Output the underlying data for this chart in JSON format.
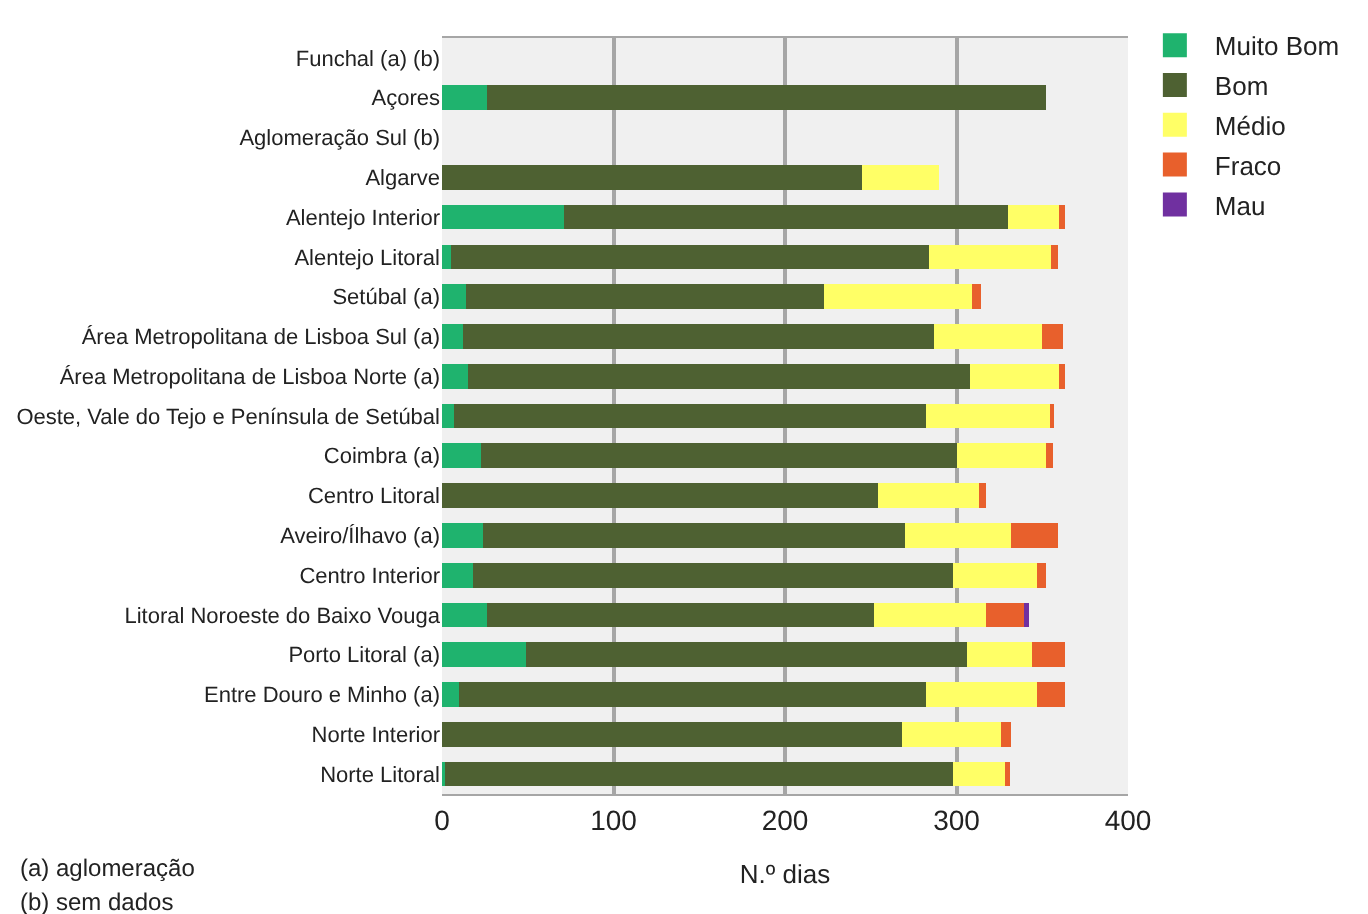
{
  "chart_data": {
    "type": "bar",
    "orientation": "horizontal",
    "stacked": true,
    "xlabel": "N.º dias",
    "xlim": [
      0,
      400
    ],
    "xticks": [
      0,
      100,
      200,
      300,
      400
    ],
    "grid": "x",
    "legend": "top right",
    "categories": [
      "Funchal (a) (b)",
      "Açores",
      "Aglomeração Sul (b)",
      "Algarve",
      "Alentejo Interior",
      "Alentejo Litoral",
      "Setúbal (a)",
      "Área Metropolitana de Lisboa Sul (a)",
      "Área Metropolitana de Lisboa Norte (a)",
      "Oeste, Vale do Tejo e Península de Setúbal",
      "Coimbra (a)",
      "Centro Litoral",
      "Aveiro/Ílhavo (a)",
      "Centro Interior",
      "Litoral Noroeste do Baixo Vouga",
      "Porto Litoral (a)",
      "Entre Douro e Minho (a)",
      "Norte Interior",
      "Norte Litoral"
    ],
    "series": [
      {
        "name": "Muito Bom",
        "color": "#1fb36e",
        "values": [
          null,
          26,
          null,
          0,
          71,
          5,
          14,
          12,
          15,
          7,
          23,
          0,
          24,
          18,
          26,
          49,
          10,
          0,
          2
        ]
      },
      {
        "name": "Bom",
        "color": "#4e6132",
        "values": [
          null,
          326,
          null,
          245,
          259,
          279,
          209,
          275,
          293,
          275,
          277,
          254,
          246,
          280,
          226,
          257,
          272,
          268,
          296
        ]
      },
      {
        "name": "Médio",
        "color": "#ffff66",
        "values": [
          null,
          0,
          null,
          45,
          30,
          71,
          86,
          63,
          52,
          73,
          52,
          59,
          62,
          49,
          65,
          38,
          65,
          58,
          30
        ]
      },
      {
        "name": "Fraco",
        "color": "#e8602c",
        "values": [
          null,
          0,
          null,
          0,
          3,
          4,
          5,
          12,
          3,
          2,
          4,
          4,
          27,
          5,
          23,
          19,
          16,
          6,
          3
        ]
      },
      {
        "name": "Mau",
        "color": "#7030a0",
        "values": [
          null,
          0,
          null,
          0,
          0,
          0,
          0,
          0,
          0,
          0,
          0,
          0,
          0,
          0,
          2,
          0,
          0,
          0,
          0
        ]
      }
    ],
    "annotations": [
      "(a) aglomeração",
      "(b) sem dados"
    ]
  }
}
